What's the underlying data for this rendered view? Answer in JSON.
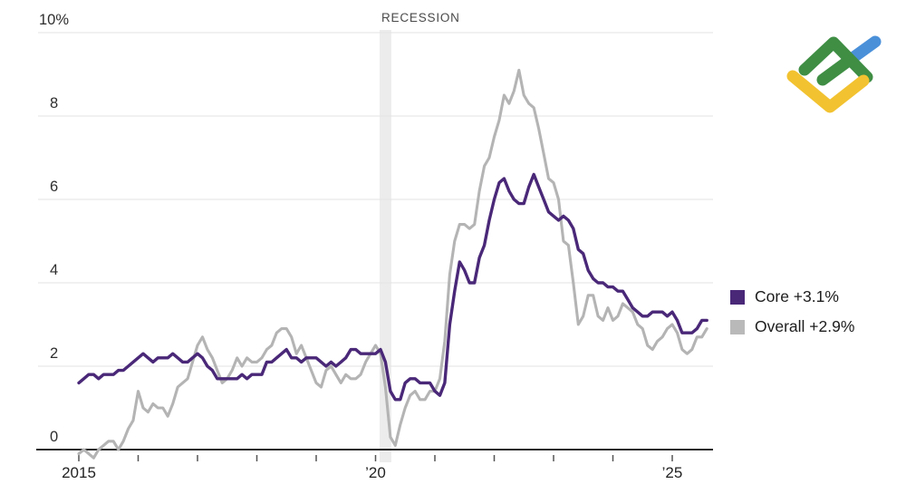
{
  "legend": {
    "items": [
      {
        "label": "Core +3.1%",
        "color": "#4a2878"
      },
      {
        "label": "Overall +2.9%",
        "color": "#b9b9b9"
      }
    ]
  },
  "logo": {
    "green": "#3f8e44",
    "yellow": "#f2c230",
    "blue": "#4a90d9"
  },
  "chart_data": {
    "type": "line",
    "title": "",
    "x_start": "2015-01",
    "x_frequency": "monthly",
    "ylim": [
      0,
      10
    ],
    "yticks": [
      0,
      2,
      4,
      6,
      8,
      10
    ],
    "ytick_labels": [
      "0",
      "2",
      "4",
      "6",
      "8",
      "10%"
    ],
    "xticks_years": [
      2015,
      2016,
      2017,
      2018,
      2019,
      2020,
      2021,
      2022,
      2023,
      2024,
      2025
    ],
    "xtick_labels": {
      "2015": "2015",
      "2020": "’20",
      "2025": "’25"
    },
    "grid": true,
    "legend_position": "right",
    "annotations": [
      {
        "text": "RECESSION",
        "x": "2020-02"
      }
    ],
    "recession_band_months": [
      61,
      63
    ],
    "recession_band_color": "#ececec",
    "axis_color": "#2a2a2a",
    "grid_color": "#e3e3e3",
    "series": [
      {
        "name": "Core",
        "latest_label": "Core +3.1%",
        "color": "#4a2878",
        "width": 3.4,
        "values": [
          1.6,
          1.7,
          1.8,
          1.8,
          1.7,
          1.8,
          1.8,
          1.8,
          1.9,
          1.9,
          2.0,
          2.1,
          2.2,
          2.3,
          2.2,
          2.1,
          2.2,
          2.2,
          2.2,
          2.3,
          2.2,
          2.1,
          2.1,
          2.2,
          2.3,
          2.2,
          2.0,
          1.9,
          1.7,
          1.7,
          1.7,
          1.7,
          1.7,
          1.8,
          1.7,
          1.8,
          1.8,
          1.8,
          2.1,
          2.1,
          2.2,
          2.3,
          2.4,
          2.2,
          2.2,
          2.1,
          2.2,
          2.2,
          2.2,
          2.1,
          2.0,
          2.1,
          2.0,
          2.1,
          2.2,
          2.4,
          2.4,
          2.3,
          2.3,
          2.3,
          2.3,
          2.4,
          2.1,
          1.4,
          1.2,
          1.2,
          1.6,
          1.7,
          1.7,
          1.6,
          1.6,
          1.6,
          1.4,
          1.3,
          1.6,
          3.0,
          3.8,
          4.5,
          4.3,
          4.0,
          4.0,
          4.6,
          4.9,
          5.5,
          6.0,
          6.4,
          6.5,
          6.2,
          6.0,
          5.9,
          5.9,
          6.3,
          6.6,
          6.3,
          6.0,
          5.7,
          5.6,
          5.5,
          5.6,
          5.5,
          5.3,
          4.8,
          4.7,
          4.3,
          4.1,
          4.0,
          4.0,
          3.9,
          3.9,
          3.8,
          3.8,
          3.6,
          3.4,
          3.3,
          3.2,
          3.2,
          3.3,
          3.3,
          3.3,
          3.2,
          3.3,
          3.1,
          2.8,
          2.8,
          2.8,
          2.9,
          3.1,
          3.1
        ]
      },
      {
        "name": "Overall",
        "latest_label": "Overall +2.9%",
        "color": "#b4b4b4",
        "width": 3.1,
        "values": [
          -0.1,
          0.0,
          -0.1,
          -0.2,
          0.0,
          0.1,
          0.2,
          0.2,
          0.0,
          0.2,
          0.5,
          0.7,
          1.4,
          1.0,
          0.9,
          1.1,
          1.0,
          1.0,
          0.8,
          1.1,
          1.5,
          1.6,
          1.7,
          2.1,
          2.5,
          2.7,
          2.4,
          2.2,
          1.9,
          1.6,
          1.7,
          1.9,
          2.2,
          2.0,
          2.2,
          2.1,
          2.1,
          2.2,
          2.4,
          2.5,
          2.8,
          2.9,
          2.9,
          2.7,
          2.3,
          2.5,
          2.2,
          1.9,
          1.6,
          1.5,
          1.9,
          2.0,
          1.8,
          1.6,
          1.8,
          1.7,
          1.7,
          1.8,
          2.1,
          2.3,
          2.5,
          2.3,
          1.5,
          0.3,
          0.1,
          0.6,
          1.0,
          1.3,
          1.4,
          1.2,
          1.2,
          1.4,
          1.4,
          1.7,
          2.6,
          4.2,
          5.0,
          5.4,
          5.4,
          5.3,
          5.4,
          6.2,
          6.8,
          7.0,
          7.5,
          7.9,
          8.5,
          8.3,
          8.6,
          9.1,
          8.5,
          8.3,
          8.2,
          7.7,
          7.1,
          6.5,
          6.4,
          6.0,
          5.0,
          4.9,
          4.0,
          3.0,
          3.2,
          3.7,
          3.7,
          3.2,
          3.1,
          3.4,
          3.1,
          3.2,
          3.5,
          3.4,
          3.3,
          3.0,
          2.9,
          2.5,
          2.4,
          2.6,
          2.7,
          2.9,
          3.0,
          2.8,
          2.4,
          2.3,
          2.4,
          2.7,
          2.7,
          2.9
        ]
      }
    ]
  }
}
